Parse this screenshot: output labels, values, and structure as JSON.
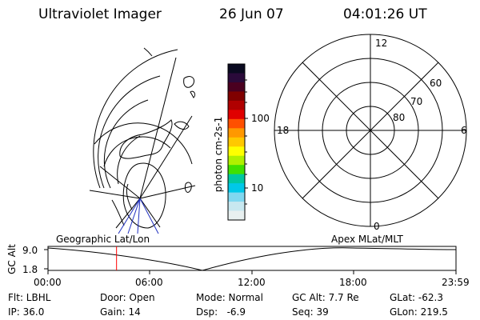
{
  "header": {
    "title": "Ultraviolet Imager",
    "date": "26 Jun 07",
    "time": "04:01:26 UT"
  },
  "colorbar": {
    "label": "photon cm-2s-1",
    "ticks": [
      "100",
      "10"
    ],
    "colors": [
      "#0a0a20",
      "#2a0a3a",
      "#4a0020",
      "#800000",
      "#b00000",
      "#e00000",
      "#ff5000",
      "#ff9800",
      "#ffc800",
      "#ffff00",
      "#b0f000",
      "#40e000",
      "#00c8a0",
      "#00c8e8",
      "#80d8f0",
      "#c8e8f0",
      "#e8f0f0"
    ]
  },
  "polar_plot": {
    "mlt_labels": [
      "12",
      "18",
      "6",
      "0"
    ],
    "lat_labels": [
      "60",
      "70",
      "80"
    ]
  },
  "timeline": {
    "ylabel": "GC Alt",
    "yticks": [
      "9.0",
      "1.8"
    ],
    "left_label": "Geographic Lat/Lon",
    "right_label": "Apex MLat/MLT",
    "xticks": [
      "00:00",
      "06:00",
      "12:00",
      "18:00",
      "23:59"
    ],
    "current_time_fraction": 0.168,
    "marker_color": "#ff0000"
  },
  "info": {
    "row1": {
      "filter": "Flt: LBHL",
      "door": "Door: Open",
      "mode": "Mode: Normal",
      "gcalt": "GC Alt: 7.7 Re",
      "glat": "GLat: -62.3"
    },
    "row2": {
      "ip": "IP: 36.0",
      "gain": "Gain: 14",
      "dsp": "Dsp:   -6.9",
      "seq": "Seq: 39",
      "glon": "GLon: 219.5"
    }
  }
}
